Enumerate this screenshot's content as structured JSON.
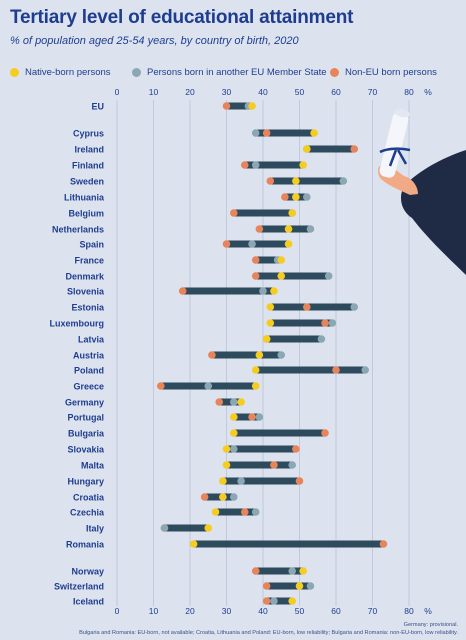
{
  "title": "Tertiary level of educational attainment",
  "subtitle": "% of population aged 25-54 years, by country of birth, 2020",
  "legend": [
    {
      "label": "Native-born persons",
      "color": "#f5cc1f"
    },
    {
      "label": "Persons born in another EU Member State",
      "color": "#8aa7b3"
    },
    {
      "label": "Non-EU born persons",
      "color": "#e8845a"
    }
  ],
  "footnote_1": "Germany: provisional.",
  "footnote_2": "Bulgaria and Romania: EU-born, not available; Croatia, Lithuania and Poland: EU-born, low reliability; Bulgaria and Romania: non-EU-born, low reliability.",
  "colors": {
    "bar": "#2e4a5d",
    "native": "#f5cc1f",
    "eu": "#8aa7b3",
    "noneu": "#e8845a",
    "text": "#1f3d8f",
    "grid": "#b9c4d8",
    "illustration": "#1f2b44"
  },
  "chart_data": {
    "type": "dumbbell",
    "xlim": [
      0,
      80
    ],
    "ticks": [
      "0",
      "10",
      "20",
      "30",
      "40",
      "50",
      "60",
      "70",
      "80",
      "%"
    ],
    "series_names": [
      "Native-born persons",
      "Persons born in another EU Member State",
      "Non-EU born persons"
    ],
    "rows": [
      {
        "label": "EU",
        "native": 37,
        "eu": 36,
        "noneu": 30
      },
      {
        "label": "Cyprus",
        "native": 54,
        "eu": 38,
        "noneu": 41
      },
      {
        "label": "Ireland",
        "native": 52,
        "eu": 52,
        "noneu": 65
      },
      {
        "label": "Finland",
        "native": 51,
        "eu": 38,
        "noneu": 35
      },
      {
        "label": "Sweden",
        "native": 49,
        "eu": 62,
        "noneu": 42
      },
      {
        "label": "Lithuania",
        "native": 49,
        "eu": 52,
        "noneu": 46
      },
      {
        "label": "Belgium",
        "native": 48,
        "eu": 48,
        "noneu": 32
      },
      {
        "label": "Netherlands",
        "native": 47,
        "eu": 53,
        "noneu": 39
      },
      {
        "label": "Spain",
        "native": 47,
        "eu": 37,
        "noneu": 30
      },
      {
        "label": "France",
        "native": 45,
        "eu": 44,
        "noneu": 38
      },
      {
        "label": "Denmark",
        "native": 45,
        "eu": 58,
        "noneu": 38
      },
      {
        "label": "Slovenia",
        "native": 43,
        "eu": 40,
        "noneu": 18
      },
      {
        "label": "Estonia",
        "native": 42,
        "eu": 65,
        "noneu": 52
      },
      {
        "label": "Luxembourg",
        "native": 42,
        "eu": 59,
        "noneu": 57
      },
      {
        "label": "Latvia",
        "native": 41,
        "eu": 56,
        "noneu": 41
      },
      {
        "label": "Austria",
        "native": 39,
        "eu": 45,
        "noneu": 26
      },
      {
        "label": "Poland",
        "native": 38,
        "eu": 68,
        "noneu": 60
      },
      {
        "label": "Greece",
        "native": 38,
        "eu": 25,
        "noneu": 12
      },
      {
        "label": "Germany",
        "native": 34,
        "eu": 32,
        "noneu": 28
      },
      {
        "label": "Portugal",
        "native": 32,
        "eu": 39,
        "noneu": 37
      },
      {
        "label": "Bulgaria",
        "native": 32,
        "eu": null,
        "noneu": 57
      },
      {
        "label": "Slovakia",
        "native": 30,
        "eu": 32,
        "noneu": 49
      },
      {
        "label": "Malta",
        "native": 30,
        "eu": 48,
        "noneu": 43
      },
      {
        "label": "Hungary",
        "native": 29,
        "eu": 34,
        "noneu": 50
      },
      {
        "label": "Croatia",
        "native": 29,
        "eu": 32,
        "noneu": 24
      },
      {
        "label": "Czechia",
        "native": 27,
        "eu": 38,
        "noneu": 35
      },
      {
        "label": "Italy",
        "native": 25,
        "eu": 13,
        "noneu": 13
      },
      {
        "label": "Romania",
        "native": 21,
        "eu": null,
        "noneu": 73
      },
      {
        "label": "Norway",
        "native": 51,
        "eu": 48,
        "noneu": 38
      },
      {
        "label": "Switzerland",
        "native": 50,
        "eu": 53,
        "noneu": 41
      },
      {
        "label": "Iceland",
        "native": 48,
        "eu": 43,
        "noneu": 41
      }
    ]
  }
}
